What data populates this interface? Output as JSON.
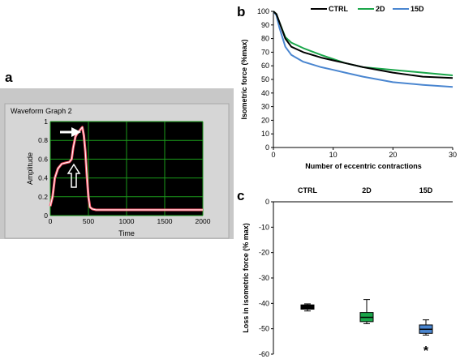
{
  "panels": {
    "a": "a",
    "b": "b",
    "c": "c"
  },
  "colors": {
    "ctrl": "#000000",
    "d2": "#1aa64a",
    "d15": "#4a86d0",
    "trace": "#ff5a6e",
    "plot_bg": "#000000",
    "grid": "#1a9a1a",
    "frame": "#b8b8b8"
  },
  "chart_data": [
    {
      "type": "line",
      "title": "Waveform Graph 2",
      "xlabel": "Time",
      "ylabel": "Amplitude",
      "xlim": [
        0,
        2000
      ],
      "ylim": [
        0,
        1
      ],
      "x_ticks": [
        "0",
        "500",
        "1000",
        "1500",
        "2000"
      ],
      "y_ticks": [
        "0",
        "0.2",
        "0.4",
        "0.6",
        "0.8",
        "1"
      ],
      "grid": true,
      "annotations": [
        "filled arrow at peak",
        "hollow arrow at shoulder"
      ],
      "series": [
        {
          "x": [
            0,
            30,
            60,
            100,
            150,
            200,
            250,
            280,
            300,
            330,
            350,
            370,
            390,
            410,
            420,
            440,
            460,
            480,
            500,
            520,
            550,
            600,
            700,
            800,
            900,
            1000,
            1200,
            1400,
            1600,
            1800,
            2000
          ],
          "values": [
            0.1,
            0.2,
            0.4,
            0.5,
            0.55,
            0.56,
            0.57,
            0.6,
            0.72,
            0.84,
            0.87,
            0.89,
            0.91,
            0.93,
            0.94,
            0.85,
            0.68,
            0.42,
            0.2,
            0.09,
            0.07,
            0.06,
            0.06,
            0.06,
            0.06,
            0.06,
            0.06,
            0.06,
            0.06,
            0.06,
            0.06
          ]
        }
      ]
    },
    {
      "type": "line",
      "xlabel": "Number of eccentric contractions",
      "ylabel": "Isometric force (%max)",
      "xlim": [
        0,
        30
      ],
      "ylim": [
        0,
        100
      ],
      "x_ticks": [
        "0",
        "10",
        "20",
        "30"
      ],
      "y_ticks": [
        "0",
        "10",
        "20",
        "30",
        "40",
        "50",
        "60",
        "70",
        "80",
        "90",
        "100"
      ],
      "grid": false,
      "legend_position": "top-right",
      "series": [
        {
          "name": "CTRL",
          "x": [
            0,
            0.5,
            1,
            2,
            3,
            5,
            8,
            10,
            12,
            15,
            20,
            25,
            30
          ],
          "values": [
            100,
            98,
            92,
            80,
            74,
            70,
            66,
            64,
            62,
            59,
            55,
            52,
            51
          ]
        },
        {
          "name": "2D",
          "x": [
            0,
            0.5,
            1,
            2,
            3,
            5,
            8,
            10,
            12,
            15,
            20,
            25,
            30
          ],
          "values": [
            100,
            98,
            92,
            81,
            77,
            73,
            68,
            65,
            62,
            59,
            57,
            55,
            53
          ]
        },
        {
          "name": "15D",
          "x": [
            0,
            0.5,
            1,
            2,
            3,
            5,
            8,
            10,
            12,
            15,
            20,
            25,
            30
          ],
          "values": [
            100,
            97,
            88,
            74,
            68,
            63,
            59,
            57,
            55,
            52,
            48,
            46,
            44.5
          ]
        }
      ]
    },
    {
      "type": "box",
      "ylabel": "Loss in isometric force (% max)",
      "ylim": [
        -60,
        0
      ],
      "y_ticks": [
        "0",
        "-10",
        "-20",
        "-30",
        "-40",
        "-50",
        "-60"
      ],
      "categories": [
        "CTRL",
        "2D",
        "15D"
      ],
      "boxes": [
        {
          "name": "CTRL",
          "min": -43,
          "q1": -42.3,
          "median": -41.5,
          "q3": -40.6,
          "max": -40.2
        },
        {
          "name": "2D",
          "min": -48,
          "q1": -47.2,
          "median": -45.5,
          "q3": -43.6,
          "max": -38.5
        },
        {
          "name": "15D",
          "min": -52.5,
          "q1": -51.8,
          "median": -50.2,
          "q3": -48.5,
          "max": -46.5
        }
      ],
      "annotations": [
        "*"
      ]
    }
  ]
}
